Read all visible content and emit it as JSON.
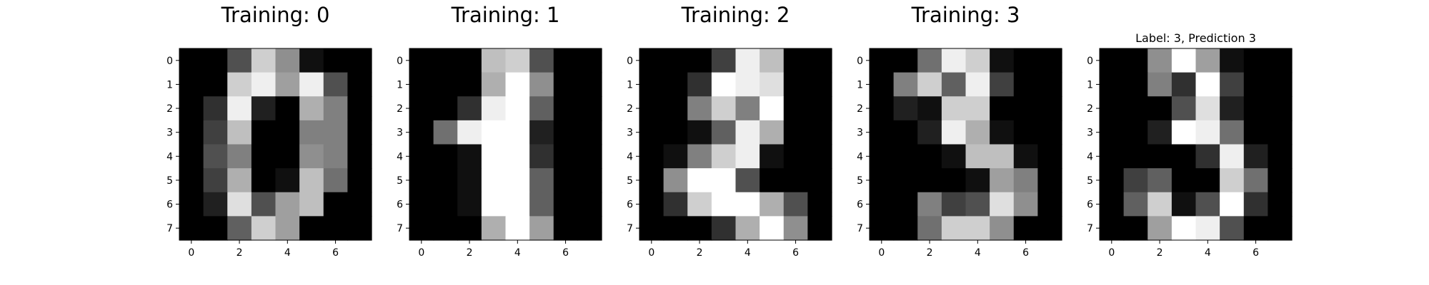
{
  "chart_data": [
    {
      "type": "heatmap",
      "title": "Training: 0",
      "colormap": "gray_r_inverted_to_gray",
      "x_ticks": [
        "0",
        "2",
        "4",
        "6"
      ],
      "y_ticks": [
        "0",
        "1",
        "2",
        "3",
        "4",
        "5",
        "6",
        "7"
      ],
      "vmin": 0,
      "vmax": 16,
      "grid": false,
      "values": [
        [
          0,
          0,
          5,
          13,
          9,
          1,
          0,
          0
        ],
        [
          0,
          0,
          13,
          15,
          10,
          15,
          5,
          0
        ],
        [
          0,
          3,
          15,
          2,
          0,
          11,
          8,
          0
        ],
        [
          0,
          4,
          12,
          0,
          0,
          8,
          8,
          0
        ],
        [
          0,
          5,
          8,
          0,
          0,
          9,
          8,
          0
        ],
        [
          0,
          4,
          11,
          0,
          1,
          12,
          7,
          0
        ],
        [
          0,
          2,
          14,
          5,
          10,
          12,
          0,
          0
        ],
        [
          0,
          0,
          6,
          13,
          10,
          0,
          0,
          0
        ]
      ]
    },
    {
      "type": "heatmap",
      "title": "Training: 1",
      "colormap": "gray",
      "x_ticks": [
        "0",
        "2",
        "4",
        "6"
      ],
      "y_ticks": [
        "0",
        "1",
        "2",
        "3",
        "4",
        "5",
        "6",
        "7"
      ],
      "vmin": 0,
      "vmax": 16,
      "grid": false,
      "values": [
        [
          0,
          0,
          0,
          12,
          13,
          5,
          0,
          0
        ],
        [
          0,
          0,
          0,
          11,
          16,
          9,
          0,
          0
        ],
        [
          0,
          0,
          3,
          15,
          16,
          6,
          0,
          0
        ],
        [
          0,
          7,
          15,
          16,
          16,
          2,
          0,
          0
        ],
        [
          0,
          0,
          1,
          16,
          16,
          3,
          0,
          0
        ],
        [
          0,
          0,
          1,
          16,
          16,
          6,
          0,
          0
        ],
        [
          0,
          0,
          1,
          16,
          16,
          6,
          0,
          0
        ],
        [
          0,
          0,
          0,
          11,
          16,
          10,
          0,
          0
        ]
      ]
    },
    {
      "type": "heatmap",
      "title": "Training: 2",
      "colormap": "gray",
      "x_ticks": [
        "0",
        "2",
        "4",
        "6"
      ],
      "y_ticks": [
        "0",
        "1",
        "2",
        "3",
        "4",
        "5",
        "6",
        "7"
      ],
      "vmin": 0,
      "vmax": 16,
      "grid": false,
      "values": [
        [
          0,
          0,
          0,
          4,
          15,
          12,
          0,
          0
        ],
        [
          0,
          0,
          3,
          16,
          15,
          14,
          0,
          0
        ],
        [
          0,
          0,
          8,
          13,
          8,
          16,
          0,
          0
        ],
        [
          0,
          0,
          1,
          6,
          15,
          11,
          0,
          0
        ],
        [
          0,
          1,
          8,
          13,
          15,
          1,
          0,
          0
        ],
        [
          0,
          9,
          16,
          16,
          5,
          0,
          0,
          0
        ],
        [
          0,
          3,
          13,
          16,
          16,
          11,
          5,
          0
        ],
        [
          0,
          0,
          0,
          3,
          11,
          16,
          9,
          0
        ]
      ]
    },
    {
      "type": "heatmap",
      "title": "Training: 3",
      "colormap": "gray",
      "x_ticks": [
        "0",
        "2",
        "4",
        "6"
      ],
      "y_ticks": [
        "0",
        "1",
        "2",
        "3",
        "4",
        "5",
        "6",
        "7"
      ],
      "vmin": 0,
      "vmax": 16,
      "grid": false,
      "values": [
        [
          0,
          0,
          7,
          15,
          13,
          1,
          0,
          0
        ],
        [
          0,
          8,
          13,
          6,
          15,
          4,
          0,
          0
        ],
        [
          0,
          2,
          1,
          13,
          13,
          0,
          0,
          0
        ],
        [
          0,
          0,
          2,
          15,
          11,
          1,
          0,
          0
        ],
        [
          0,
          0,
          0,
          1,
          12,
          12,
          1,
          0
        ],
        [
          0,
          0,
          0,
          0,
          1,
          10,
          8,
          0
        ],
        [
          0,
          0,
          8,
          4,
          5,
          14,
          9,
          0
        ],
        [
          0,
          0,
          7,
          13,
          13,
          9,
          0,
          0
        ]
      ]
    },
    {
      "type": "heatmap",
      "title": "Label: 3, Prediction 3",
      "colormap": "gray",
      "x_ticks": [
        "0",
        "2",
        "4",
        "6"
      ],
      "y_ticks": [
        "0",
        "1",
        "2",
        "3",
        "4",
        "5",
        "6",
        "7"
      ],
      "vmin": 0,
      "vmax": 16,
      "grid": false,
      "values": [
        [
          0,
          0,
          9,
          16,
          10,
          1,
          0,
          0
        ],
        [
          0,
          0,
          8,
          3,
          16,
          4,
          0,
          0
        ],
        [
          0,
          0,
          0,
          5,
          14,
          2,
          0,
          0
        ],
        [
          0,
          0,
          2,
          16,
          15,
          7,
          0,
          0
        ],
        [
          0,
          0,
          0,
          0,
          3,
          15,
          2,
          0
        ],
        [
          0,
          4,
          6,
          0,
          0,
          13,
          7,
          0
        ],
        [
          0,
          6,
          13,
          1,
          5,
          16,
          3,
          0
        ],
        [
          0,
          0,
          10,
          16,
          15,
          5,
          0,
          0
        ]
      ]
    }
  ]
}
